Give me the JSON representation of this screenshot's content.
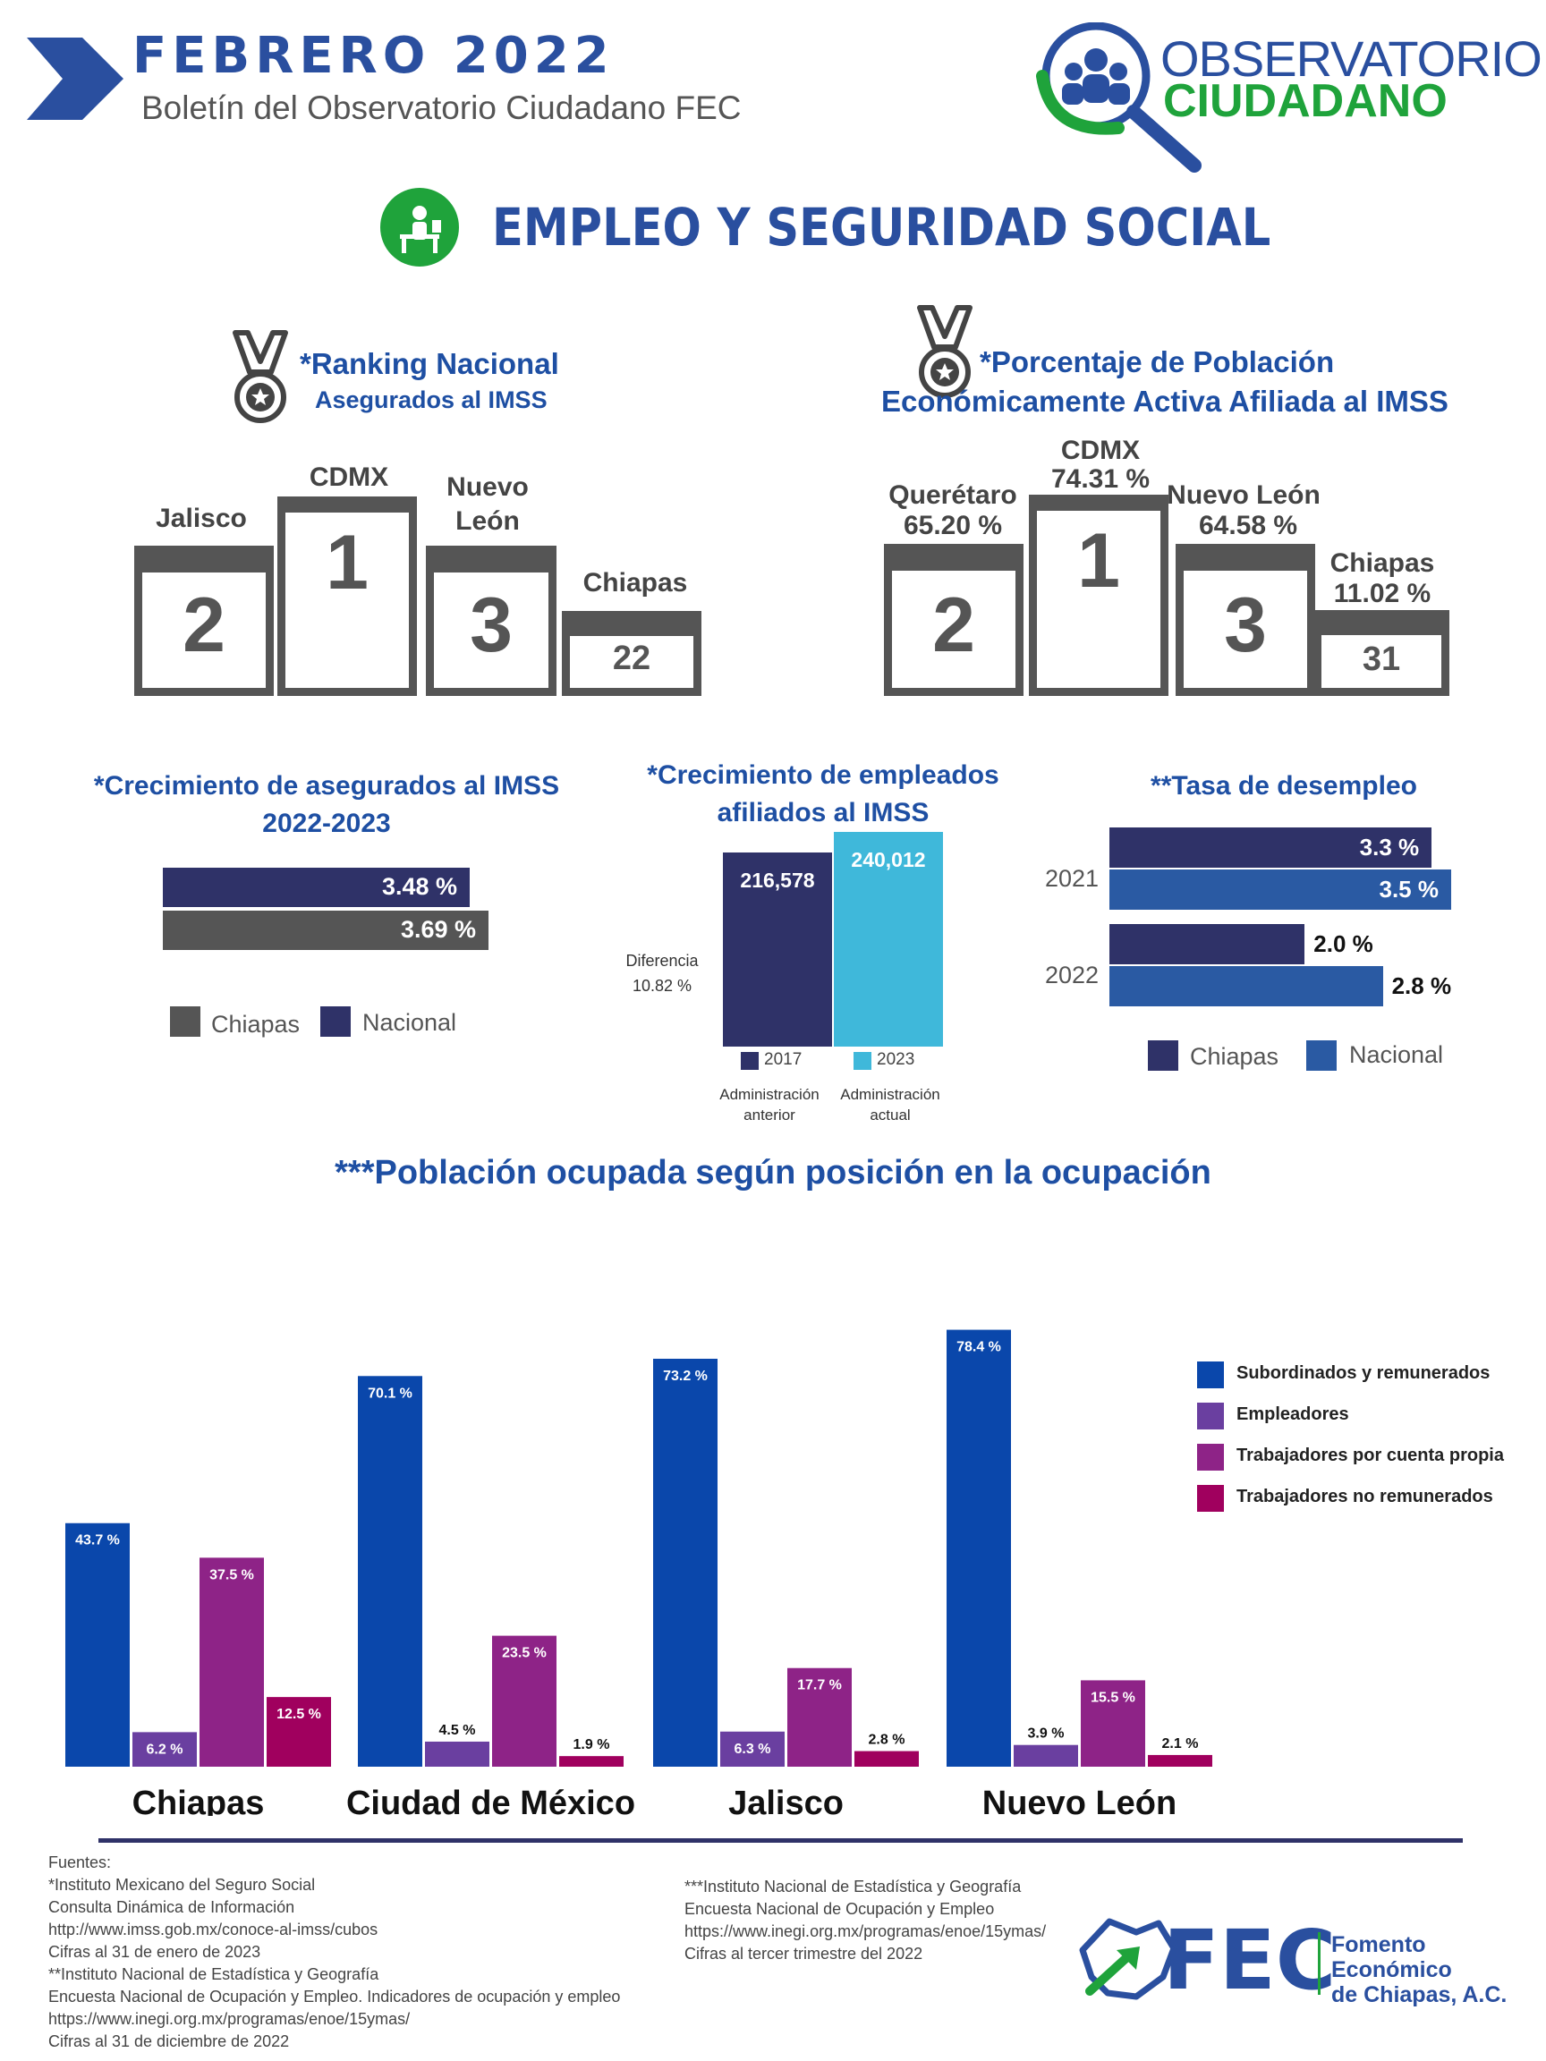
{
  "header": {
    "month_year": "FEBRERO  2022",
    "subtitle": "Boletín del Observatorio Ciudadano FEC",
    "logo_top": "OBSERVATORIO",
    "logo_bottom": "CIUDADANO"
  },
  "section": {
    "title": "EMPLEO Y SEGURIDAD SOCIAL"
  },
  "ranking": {
    "title": "*Ranking Nacional",
    "subtitle": "Asegurados al IMSS",
    "podium": [
      {
        "label": "CDMX",
        "position": "1"
      },
      {
        "label": "Jalisco",
        "position": "2"
      },
      {
        "label": "Nuevo León",
        "position": "3"
      },
      {
        "label": "Chiapas",
        "position": "22"
      }
    ]
  },
  "pea": {
    "title": "*Porcentaje de Población",
    "subtitle": "Económicamente  Activa Afiliada al IMSS",
    "podium": [
      {
        "label": "CDMX",
        "value": "74.31 %",
        "position": "1"
      },
      {
        "label": "Querétaro",
        "value": "65.20 %",
        "position": "2"
      },
      {
        "label": "Nuevo León",
        "value": "64.58 %",
        "position": "3"
      },
      {
        "label": "Chiapas",
        "value": "11.02 %",
        "position": "31"
      }
    ]
  },
  "growth_insured": {
    "title_1": "*Crecimiento de asegurados al IMSS",
    "title_2": "2022-2023",
    "chart_data": {
      "type": "bar",
      "orientation": "horizontal",
      "series": [
        {
          "name": "Nacional",
          "values": [
            3.48
          ],
          "label": "3.48 %",
          "color": "#2f3268"
        },
        {
          "name": "Chiapas",
          "values": [
            3.69
          ],
          "label": "3.69 %",
          "color": "#555555"
        }
      ]
    },
    "legend": [
      "Chiapas",
      "Nacional"
    ]
  },
  "growth_employees": {
    "title_1": "*Crecimiento de empleados",
    "title_2": "afiliados al IMSS",
    "diff_label": "Diferencia",
    "diff_value": "10.82 %",
    "chart_data": {
      "type": "bar",
      "categories": [
        "2017",
        "2023"
      ],
      "values": [
        216578,
        240012
      ],
      "labels": [
        "216,578",
        "240,012"
      ],
      "colors": [
        "#2f3268",
        "#3fb8da"
      ]
    },
    "notes": [
      {
        "line1": "Administración",
        "line2": "anterior"
      },
      {
        "line1": "Administración",
        "line2": "actual"
      }
    ]
  },
  "unemployment": {
    "title": "**Tasa de desempleo",
    "chart_data": {
      "type": "bar",
      "orientation": "horizontal",
      "categories": [
        "2021",
        "2022"
      ],
      "series": [
        {
          "name": "Chiapas",
          "values": [
            3.3,
            2.0
          ],
          "labels": [
            "3.3 %",
            "2.0 %"
          ],
          "color": "#2f3268"
        },
        {
          "name": "Nacional",
          "values": [
            3.5,
            2.8
          ],
          "labels": [
            "3.5 %",
            "2.8 %"
          ],
          "color": "#2a5aa3"
        }
      ]
    },
    "legend": [
      "Chiapas",
      "Nacional"
    ]
  },
  "occupation": {
    "title": "***Población ocupada según posición en la ocupación",
    "chart_data": {
      "type": "bar",
      "categories": [
        "Chiapas",
        "Ciudad de México",
        "Jalisco",
        "Nuevo León"
      ],
      "series": [
        {
          "name": "Subordinados y remunerados",
          "color": "#0a47ab",
          "values": [
            43.7,
            70.1,
            73.2,
            78.4
          ],
          "labels": [
            "43.7 %",
            "70.1 %",
            "73.2 %",
            "78.4 %"
          ]
        },
        {
          "name": "Empleadores",
          "color": "#6a3fa0",
          "values": [
            6.2,
            4.5,
            6.3,
            3.9
          ],
          "labels": [
            "6.2 %",
            "4.5 %",
            "6.3 %",
            "3.9 %"
          ]
        },
        {
          "name": "Trabajadores por cuenta propia",
          "color": "#8e2387",
          "values": [
            37.5,
            23.5,
            17.7,
            15.5
          ],
          "labels": [
            "37.5 %",
            "23.5 %",
            "17.7 %",
            "15.5 %"
          ]
        },
        {
          "name": "Trabajadores no remunerados",
          "color": "#a0005e",
          "values": [
            12.5,
            1.9,
            2.8,
            2.1
          ],
          "labels": [
            "12.5 %",
            "1.9 %",
            "2.8 %",
            "2.1 %"
          ]
        }
      ]
    }
  },
  "sources": {
    "left": [
      "Fuentes:",
      "*Instituto Mexicano del Seguro Social",
      "Consulta Dinámica de Información",
      "http://www.imss.gob.mx/conoce-al-imss/cubos",
      "Cifras al 31 de enero de 2023",
      "**Instituto Nacional de Estadística y Geografía",
      "Encuesta Nacional de Ocupación y Empleo. Indicadores de ocupación y empleo",
      "https://www.inegi.org.mx/programas/enoe/15ymas/",
      "Cifras al 31 de diciembre de 2022"
    ],
    "right": [
      "***Instituto Nacional de Estadística y Geografía",
      "Encuesta Nacional de Ocupación y Empleo",
      "https://www.inegi.org.mx/programas/enoe/15ymas/",
      "Cifras al tercer trimestre del 2022"
    ]
  },
  "footer_logo": {
    "acronym": "FEC",
    "name_1": "Fomento Económico",
    "name_2": "de Chiapas, A.C."
  }
}
